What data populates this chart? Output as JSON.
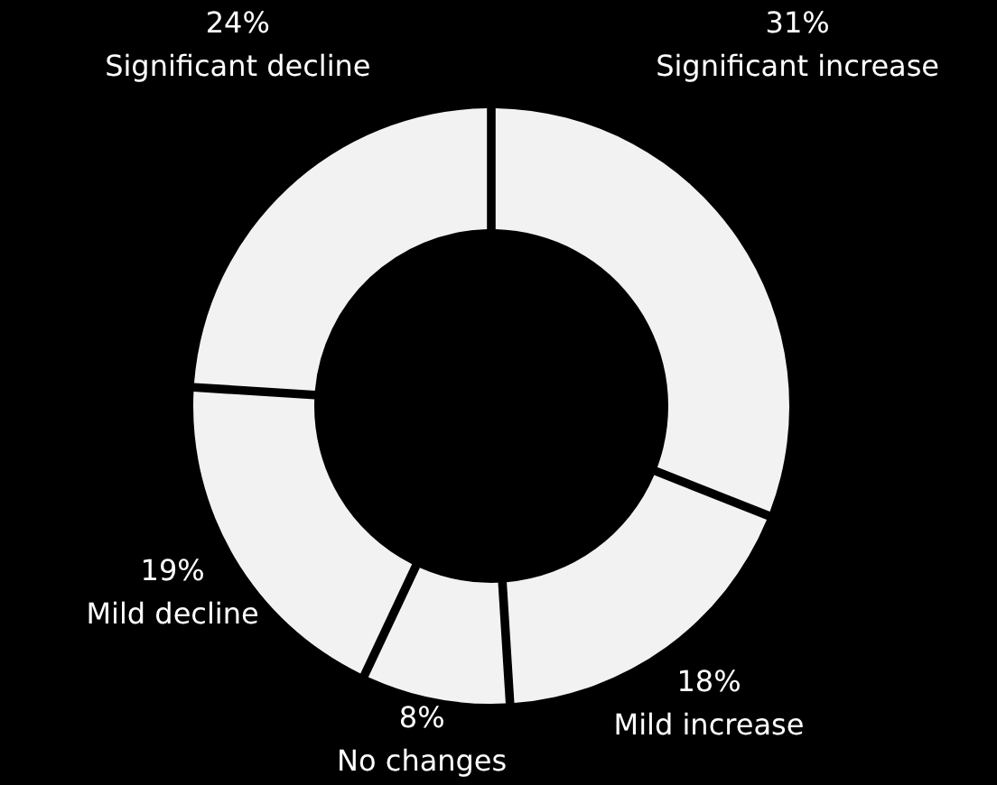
{
  "chart_data": {
    "type": "donut",
    "categories": [
      "Significant increase",
      "Mild increase",
      "No changes",
      "Mild decline",
      "Significant decline"
    ],
    "values": [
      31,
      18,
      8,
      19,
      24
    ],
    "value_labels": [
      "31%",
      "18%",
      "8%",
      "19%",
      "24%"
    ],
    "colors": [
      "#f2f2f2",
      "#f2f2f2",
      "#f2f2f2",
      "#f2f2f2",
      "#f2f2f2"
    ]
  }
}
